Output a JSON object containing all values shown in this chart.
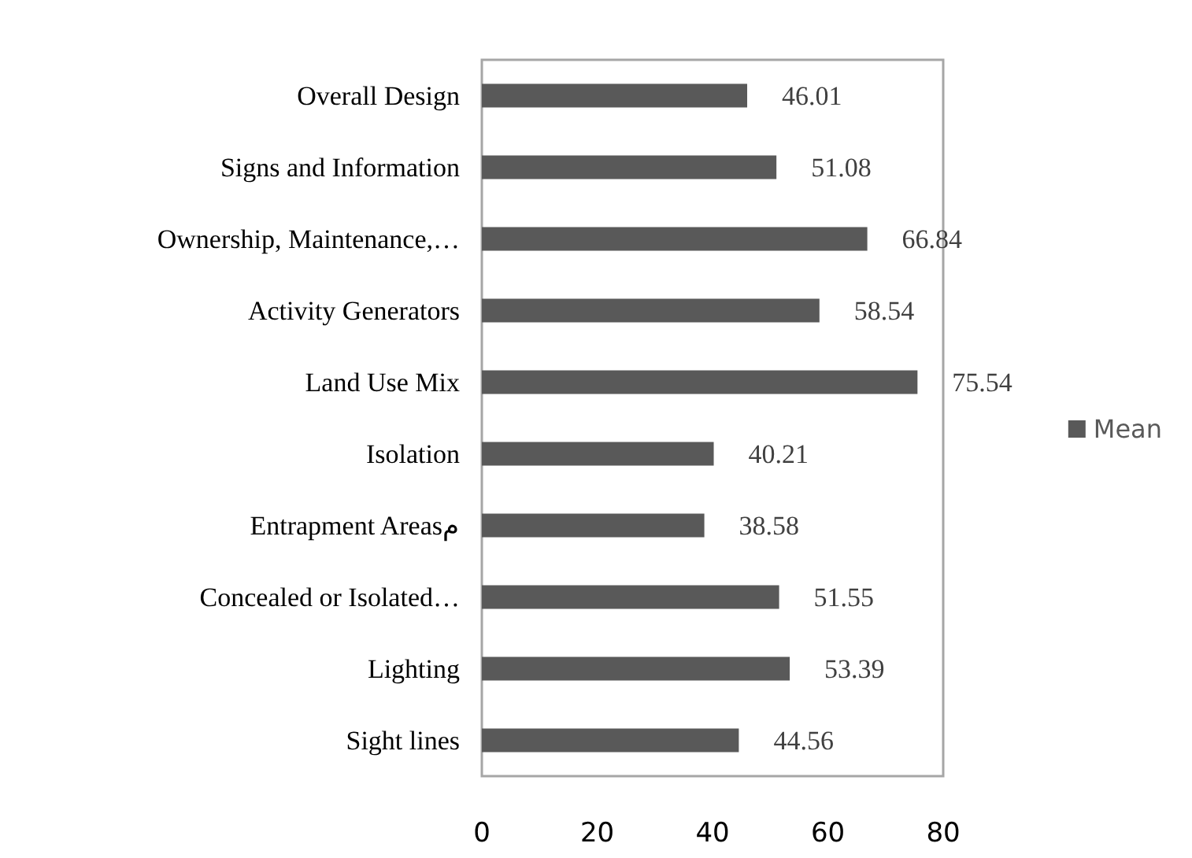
{
  "chart_data": {
    "type": "bar",
    "orientation": "horizontal",
    "categories": [
      "Overall Design",
      "Signs and Information",
      "Ownership, Maintenance,…",
      "Activity Generators",
      "Land Use Mix",
      "Isolation",
      "Entrapment Areasم",
      "Concealed or Isolated…",
      "Lighting",
      "Sight lines"
    ],
    "series": [
      {
        "name": "Mean",
        "color": "#595959",
        "values": [
          46.01,
          51.08,
          66.84,
          58.54,
          75.54,
          40.21,
          38.58,
          51.55,
          53.39,
          44.56
        ]
      }
    ],
    "xlim": [
      0,
      80
    ],
    "xticks": [
      0,
      20,
      40,
      60,
      80
    ],
    "data_labels": true,
    "grid": false,
    "legend": "right"
  }
}
